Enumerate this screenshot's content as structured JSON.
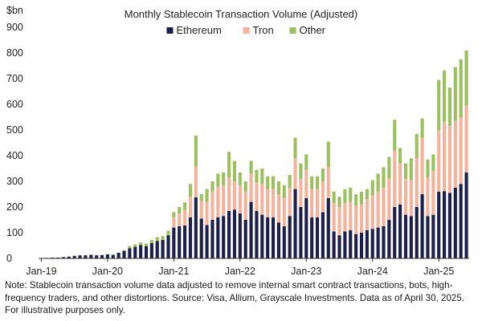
{
  "chart_data": {
    "type": "bar",
    "stacked": true,
    "title": "Monthly Stablecoin Transaction Volume (Adjusted)",
    "ylabel": "$bn",
    "xlabel": "",
    "ylim": [
      0,
      900
    ],
    "yticks": [
      0,
      100,
      200,
      300,
      400,
      500,
      600,
      700,
      800,
      900
    ],
    "grid": false,
    "legend_position": "top-center",
    "x_tick_labels": [
      {
        "label": "Jan-19",
        "index": 0
      },
      {
        "label": "Jan-20",
        "index": 12
      },
      {
        "label": "Jan-21",
        "index": 24
      },
      {
        "label": "Jan-22",
        "index": 36
      },
      {
        "label": "Jan-23",
        "index": 48
      },
      {
        "label": "Jan-24",
        "index": 60
      },
      {
        "label": "Jan-25",
        "index": 72
      }
    ],
    "categories": [
      "Jan-19",
      "Feb-19",
      "Mar-19",
      "Apr-19",
      "May-19",
      "Jun-19",
      "Jul-19",
      "Aug-19",
      "Sep-19",
      "Oct-19",
      "Nov-19",
      "Dec-19",
      "Jan-20",
      "Feb-20",
      "Mar-20",
      "Apr-20",
      "May-20",
      "Jun-20",
      "Jul-20",
      "Aug-20",
      "Sep-20",
      "Oct-20",
      "Nov-20",
      "Dec-20",
      "Jan-21",
      "Feb-21",
      "Mar-21",
      "Apr-21",
      "May-21",
      "Jun-21",
      "Jul-21",
      "Aug-21",
      "Sep-21",
      "Oct-21",
      "Nov-21",
      "Dec-21",
      "Jan-22",
      "Feb-22",
      "Mar-22",
      "Apr-22",
      "May-22",
      "Jun-22",
      "Jul-22",
      "Aug-22",
      "Sep-22",
      "Oct-22",
      "Nov-22",
      "Dec-22",
      "Jan-23",
      "Feb-23",
      "Mar-23",
      "Apr-23",
      "May-23",
      "Jun-23",
      "Jul-23",
      "Aug-23",
      "Sep-23",
      "Oct-23",
      "Nov-23",
      "Dec-23",
      "Jan-24",
      "Feb-24",
      "Mar-24",
      "Apr-24",
      "May-24",
      "Jun-24",
      "Jul-24",
      "Aug-24",
      "Sep-24",
      "Oct-24",
      "Nov-24",
      "Dec-24",
      "Jan-25",
      "Feb-25",
      "Mar-25",
      "Apr-25",
      "May-25",
      "Jun-25"
    ],
    "series": [
      {
        "name": "Ethereum",
        "color": "#1c1f4a",
        "values": [
          1,
          2,
          3,
          3,
          5,
          7,
          10,
          12,
          12,
          14,
          12,
          13,
          16,
          14,
          22,
          30,
          40,
          45,
          52,
          48,
          60,
          68,
          72,
          90,
          120,
          125,
          128,
          160,
          238,
          155,
          130,
          150,
          160,
          165,
          185,
          190,
          175,
          150,
          220,
          185,
          170,
          160,
          160,
          140,
          125,
          165,
          270,
          200,
          235,
          160,
          160,
          180,
          235,
          105,
          90,
          105,
          110,
          95,
          100,
          110,
          115,
          120,
          125,
          150,
          200,
          210,
          170,
          165,
          200,
          250,
          165,
          170,
          260,
          262,
          255,
          275,
          290,
          335
        ]
      },
      {
        "name": "Tron",
        "color": "#f4b29a",
        "values": [
          0,
          0,
          0,
          0,
          0,
          0,
          0,
          0,
          0,
          0,
          0,
          0,
          0,
          0,
          0,
          0,
          0,
          0,
          0,
          0,
          0,
          0,
          0,
          0,
          40,
          50,
          60,
          80,
          120,
          70,
          90,
          110,
          120,
          120,
          130,
          110,
          110,
          110,
          110,
          110,
          120,
          110,
          110,
          110,
          110,
          110,
          120,
          110,
          110,
          110,
          110,
          120,
          120,
          110,
          110,
          110,
          110,
          110,
          110,
          120,
          130,
          140,
          150,
          160,
          220,
          160,
          140,
          140,
          190,
          220,
          150,
          170,
          240,
          270,
          260,
          260,
          260,
          260
        ]
      },
      {
        "name": "Other",
        "color": "#9cc05f",
        "values": [
          0,
          0,
          0,
          0,
          0,
          0,
          0,
          0,
          0,
          0,
          0,
          0,
          0,
          0,
          0,
          0,
          8,
          10,
          10,
          10,
          12,
          15,
          15,
          18,
          20,
          25,
          30,
          50,
          120,
          25,
          50,
          40,
          50,
          50,
          100,
          80,
          50,
          40,
          50,
          50,
          60,
          50,
          50,
          50,
          50,
          50,
          80,
          60,
          60,
          50,
          50,
          50,
          100,
          45,
          40,
          55,
          55,
          45,
          50,
          40,
          60,
          70,
          80,
          85,
          120,
          60,
          60,
          85,
          95,
          75,
          70,
          65,
          195,
          200,
          150,
          210,
          225,
          215
        ]
      }
    ]
  },
  "note": "Note: Stablecoin transaction volume data adjusted to remove internal smart contract transactions, bots, high-frequency traders, and other distortions. Source: Visa, Allium, Grayscale Investments. Data as of April 30, 2025. For illustrative purposes only."
}
